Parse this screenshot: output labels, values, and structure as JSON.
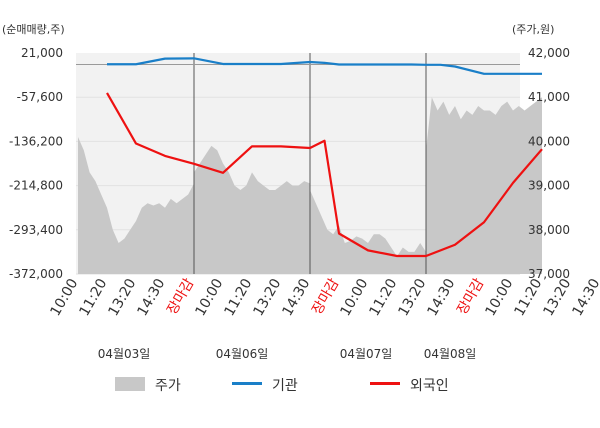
{
  "chart_data": {
    "type": "line",
    "left_axis_label": "(순매매량,주)",
    "right_axis_label": "(주가,원)",
    "left_ticks": [
      "21,000",
      "-57,600",
      "-136,200",
      "-214,800",
      "-293,400",
      "-372,000"
    ],
    "right_ticks": [
      "42,000",
      "41,000",
      "40,000",
      "39,000",
      "38,000",
      "37,000"
    ],
    "left_range": [
      -372000,
      21000
    ],
    "right_range": [
      37000,
      42000
    ],
    "x_ticks": [
      {
        "label": "10:00",
        "color": "#333333"
      },
      {
        "label": "11:20",
        "color": "#333333"
      },
      {
        "label": "13:20",
        "color": "#333333"
      },
      {
        "label": "14:30",
        "color": "#333333"
      },
      {
        "label": "장마감",
        "color": "#ee1111"
      },
      {
        "label": "10:00",
        "color": "#333333"
      },
      {
        "label": "11:20",
        "color": "#333333"
      },
      {
        "label": "13:20",
        "color": "#333333"
      },
      {
        "label": "14:30",
        "color": "#333333"
      },
      {
        "label": "장마감",
        "color": "#ee1111"
      },
      {
        "label": "10:00",
        "color": "#333333"
      },
      {
        "label": "11:20",
        "color": "#333333"
      },
      {
        "label": "13:20",
        "color": "#333333"
      },
      {
        "label": "14:30",
        "color": "#333333"
      },
      {
        "label": "장마감",
        "color": "#ee1111"
      },
      {
        "label": "10:00",
        "color": "#333333"
      },
      {
        "label": "11:20",
        "color": "#333333"
      },
      {
        "label": "13:20",
        "color": "#333333"
      },
      {
        "label": "14:30",
        "color": "#333333"
      }
    ],
    "dates": [
      "04월03일",
      "04월06일",
      "04월07일",
      "04월08일"
    ],
    "legend": [
      {
        "name": "주가",
        "color": "#c8c8c8"
      },
      {
        "name": "기관",
        "color": "#1a7fc8"
      },
      {
        "name": "외국인",
        "color": "#ee1111"
      }
    ],
    "series": [
      {
        "name": "주가",
        "axis": "right",
        "x": [
          0,
          0.2,
          0.4,
          0.6,
          0.8,
          1.0,
          1.2,
          1.4,
          1.6,
          1.8,
          2.0,
          2.2,
          2.4,
          2.6,
          2.8,
          3.0,
          3.2,
          3.4,
          3.6,
          3.8,
          4.0,
          4.0,
          4.2,
          4.4,
          4.6,
          4.8,
          5.0,
          5.2,
          5.4,
          5.6,
          5.8,
          6.0,
          6.2,
          6.4,
          6.6,
          6.8,
          7.0,
          7.2,
          7.4,
          7.6,
          7.8,
          8.0,
          8.0,
          8.2,
          8.4,
          8.6,
          8.8,
          9.0,
          9.2,
          9.4,
          9.6,
          9.8,
          10.0,
          10.2,
          10.4,
          10.6,
          10.8,
          11.0,
          11.2,
          11.4,
          11.6,
          11.8,
          12.0,
          12.0,
          12.2,
          12.4,
          12.6,
          12.8,
          13.0,
          13.2,
          13.4,
          13.6,
          13.8,
          14.0,
          14.2,
          14.4,
          14.6,
          14.8,
          15.0,
          15.2,
          15.4,
          15.6,
          15.8,
          16.0
        ],
        "values": [
          40100,
          39800,
          39300,
          39100,
          38800,
          38500,
          38000,
          37700,
          37800,
          38000,
          38200,
          38500,
          38600,
          38550,
          38600,
          38500,
          38700,
          38600,
          38700,
          38800,
          39050,
          39300,
          39500,
          39700,
          39900,
          39800,
          39500,
          39300,
          39000,
          38900,
          39000,
          39300,
          39100,
          39000,
          38900,
          38900,
          39000,
          39100,
          39000,
          39000,
          39100,
          39050,
          38900,
          38600,
          38300,
          38000,
          37900,
          38100,
          37700,
          37750,
          37850,
          37800,
          37700,
          37900,
          37900,
          37800,
          37600,
          37400,
          37600,
          37500,
          37500,
          37700,
          37500,
          39800,
          41000,
          40700,
          40900,
          40600,
          40800,
          40500,
          40700,
          40600,
          40800,
          40700,
          40700,
          40600,
          40800,
          40900,
          40700,
          40800,
          40700,
          40800,
          40900,
          41000
        ]
      },
      {
        "name": "기관",
        "axis": "left",
        "x": [
          1,
          2,
          3,
          4,
          5,
          5.5,
          6,
          7,
          8,
          8.5,
          9,
          10,
          10.5,
          11,
          11.5,
          12,
          12.5,
          13,
          14,
          15,
          16
        ],
        "values": [
          1000,
          1000,
          11000,
          11500,
          1500,
          1500,
          1500,
          1500,
          5000,
          3500,
          500,
          500,
          500,
          500,
          500,
          0,
          0,
          -3000,
          -16000,
          -16000,
          -16000
        ]
      },
      {
        "name": "외국인",
        "axis": "left",
        "x": [
          1,
          2,
          3,
          4,
          5,
          6,
          7,
          8,
          8.5,
          9,
          10,
          11,
          12,
          13,
          14,
          15,
          16
        ],
        "values": [
          -50000,
          -140000,
          -162000,
          -176000,
          -192000,
          -145000,
          -145000,
          -148000,
          -135000,
          -300000,
          -330000,
          -340000,
          -340000,
          -320000,
          -280000,
          -210000,
          -150000
        ]
      }
    ]
  }
}
